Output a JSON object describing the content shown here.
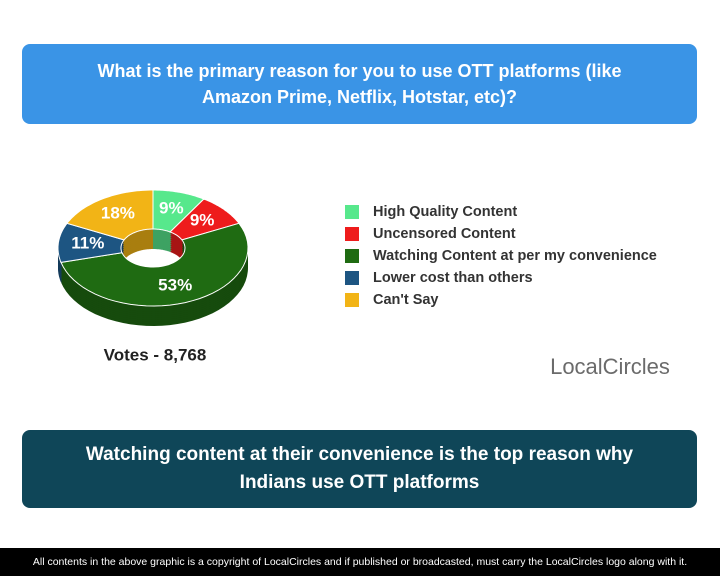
{
  "chart_data": {
    "type": "donut",
    "title": "What is the primary reason for you to use OTT platforms (like Amazon Prime, Netflix, Hotstar, etc)?",
    "categories": [
      "High Quality Content",
      "Uncensored Content",
      "Watching Content at per my convenience",
      "Lower cost than others",
      "Can't Say"
    ],
    "values": [
      9,
      9,
      53,
      11,
      18
    ],
    "value_labels": [
      "9%",
      "9%",
      "53%",
      "11%",
      "18%"
    ],
    "colors": [
      "#57e88c",
      "#ee1c1c",
      "#1f6b12",
      "#1d5582",
      "#f2b416"
    ],
    "annotation": "Votes - 8,768"
  },
  "logo": "LocalCircles",
  "conclusion": "Watching content at their convenience is the top reason why Indians use OTT platforms",
  "footer": "All contents in the above graphic is a copyright of LocalCircles and if published or broadcasted, must carry the LocalCircles logo along with it."
}
